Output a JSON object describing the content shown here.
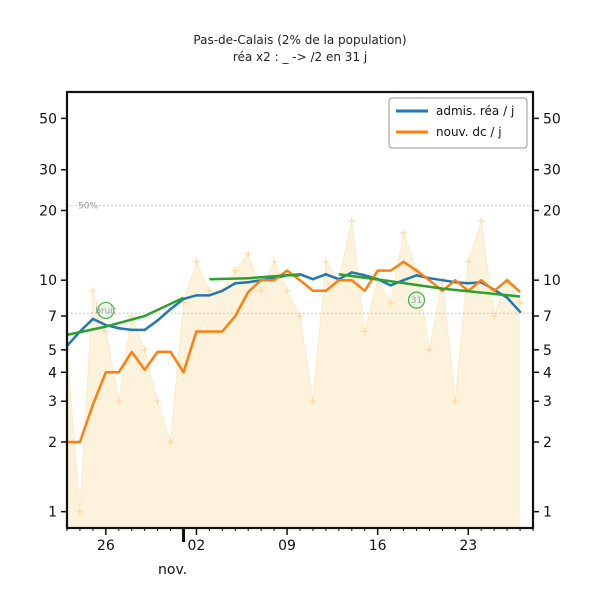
{
  "chart_data": {
    "type": "line",
    "title": "Pas-de-Calais (2% de la population)",
    "subtitle": "réa x2 : _ -> /2 en 31 j",
    "y_scale": "log",
    "ylim": [
      0.85,
      65
    ],
    "y_ticks": [
      1,
      2,
      3,
      4,
      5,
      7,
      10,
      20,
      30,
      50
    ],
    "x_range": [
      "2020-10-23",
      "2020-11-28"
    ],
    "x_ticks": [
      {
        "date": "2020-10-26",
        "label": "26"
      },
      {
        "date": "2020-11-02",
        "label": "02"
      },
      {
        "date": "2020-11-09",
        "label": "09"
      },
      {
        "date": "2020-11-16",
        "label": "16"
      },
      {
        "date": "2020-11-23",
        "label": "23"
      }
    ],
    "month_label": "nov.",
    "reference_lines": [
      {
        "label": "50%",
        "value": 21,
        "from": "2020-10-23",
        "to": "2020-11-28"
      },
      {
        "label": "",
        "value": 7.2,
        "from": "2020-10-23",
        "to": "2020-11-28"
      }
    ],
    "annotations": [
      {
        "label": "bruit",
        "date": "2020-10-26",
        "value": 7.4
      },
      {
        "label": "31",
        "date": "2020-11-19",
        "value": 8.2
      }
    ],
    "legend_position": "top-right",
    "colors": {
      "rea": "#1f77b4",
      "dc": "#ff7f0e",
      "trend": "#2ca02c",
      "fill": "#fdf3dc",
      "daily": "#fdd9a0"
    },
    "legend": [
      {
        "label": "admis. réa / j",
        "color": "#1f77b4"
      },
      {
        "label": "nouv. dc / j",
        "color": "#ff7f0e"
      }
    ],
    "series": [
      {
        "name": "admis. réa / j",
        "x": [
          "2020-10-23",
          "2020-10-24",
          "2020-10-25",
          "2020-10-26",
          "2020-10-27",
          "2020-10-28",
          "2020-10-29",
          "2020-10-30",
          "2020-10-31",
          "2020-11-01",
          "2020-11-02",
          "2020-11-03",
          "2020-11-04",
          "2020-11-05",
          "2020-11-06",
          "2020-11-07",
          "2020-11-08",
          "2020-11-09",
          "2020-11-10",
          "2020-11-11",
          "2020-11-12",
          "2020-11-13",
          "2020-11-14",
          "2020-11-15",
          "2020-11-16",
          "2020-11-17",
          "2020-11-18",
          "2020-11-19",
          "2020-11-20",
          "2020-11-21",
          "2020-11-22",
          "2020-11-23",
          "2020-11-24",
          "2020-11-25",
          "2020-11-26",
          "2020-11-27"
        ],
        "values": [
          5.2,
          6.0,
          6.8,
          6.4,
          6.2,
          6.1,
          6.1,
          6.7,
          7.5,
          8.3,
          8.6,
          8.6,
          9.0,
          9.7,
          9.8,
          10.0,
          10.2,
          10.5,
          10.6,
          10.1,
          10.6,
          10.1,
          10.8,
          10.5,
          10.1,
          9.5,
          10.0,
          10.5,
          10.2,
          10.0,
          9.8,
          9.7,
          9.8,
          9.1,
          8.4,
          7.3
        ]
      },
      {
        "name": "nouv. dc / j",
        "x": [
          "2020-10-23",
          "2020-10-24",
          "2020-10-25",
          "2020-10-26",
          "2020-10-27",
          "2020-10-28",
          "2020-10-29",
          "2020-10-30",
          "2020-10-31",
          "2020-11-01",
          "2020-11-02",
          "2020-11-03",
          "2020-11-04",
          "2020-11-05",
          "2020-11-06",
          "2020-11-07",
          "2020-11-08",
          "2020-11-09",
          "2020-11-10",
          "2020-11-11",
          "2020-11-12",
          "2020-11-13",
          "2020-11-14",
          "2020-11-15",
          "2020-11-16",
          "2020-11-17",
          "2020-11-18",
          "2020-11-19",
          "2020-11-20",
          "2020-11-21",
          "2020-11-22",
          "2020-11-23",
          "2020-11-24",
          "2020-11-25",
          "2020-11-26",
          "2020-11-27"
        ],
        "values": [
          2.0,
          2.0,
          2.9,
          4.0,
          4.0,
          4.9,
          4.1,
          4.9,
          4.9,
          4.0,
          6.0,
          6.0,
          6.0,
          7.0,
          8.9,
          10.0,
          10.0,
          11.0,
          10.0,
          9.0,
          9.0,
          10.0,
          10.0,
          9.0,
          11.0,
          11.0,
          12.0,
          11.0,
          10.0,
          9.0,
          10.0,
          9.0,
          10.0,
          9.0,
          10.0,
          8.9
        ]
      },
      {
        "name": "",
        "x": [
          "2020-10-23",
          "2020-10-26",
          "2020-10-29",
          "2020-11-01"
        ],
        "values": [
          5.8,
          6.3,
          7.0,
          8.4
        ]
      },
      {
        "name": "",
        "x": [
          "2020-11-03",
          "2020-11-06",
          "2020-11-09",
          "2020-11-10"
        ],
        "values": [
          10.1,
          10.2,
          10.5,
          10.5
        ]
      },
      {
        "name": "",
        "x": [
          "2020-11-13",
          "2020-11-17",
          "2020-11-21",
          "2020-11-27"
        ],
        "values": [
          10.6,
          9.9,
          9.2,
          8.5
        ]
      },
      {
        "name": "",
        "x": [
          "2020-10-23",
          "2020-10-24",
          "2020-10-25",
          "2020-10-26",
          "2020-10-27",
          "2020-10-28",
          "2020-10-29",
          "2020-10-30",
          "2020-10-31",
          "2020-11-01",
          "2020-11-02",
          "2020-11-03",
          "2020-11-04",
          "2020-11-05",
          "2020-11-06",
          "2020-11-07",
          "2020-11-08",
          "2020-11-09",
          "2020-11-10",
          "2020-11-11",
          "2020-11-12",
          "2020-11-13",
          "2020-11-14",
          "2020-11-15",
          "2020-11-16",
          "2020-11-17",
          "2020-11-18",
          "2020-11-19",
          "2020-11-20",
          "2020-11-21",
          "2020-11-22",
          "2020-11-23",
          "2020-11-24",
          "2020-11-25",
          "2020-11-26",
          "2020-11-27"
        ],
        "values": [
          5,
          1,
          9,
          6,
          3,
          7,
          5,
          3,
          2,
          8,
          12,
          9,
          9,
          11,
          13,
          9,
          12,
          9,
          7,
          3,
          12,
          10,
          18,
          6,
          10,
          8,
          16,
          11,
          5,
          10,
          3,
          12,
          18,
          7,
          10,
          8
        ]
      }
    ]
  }
}
